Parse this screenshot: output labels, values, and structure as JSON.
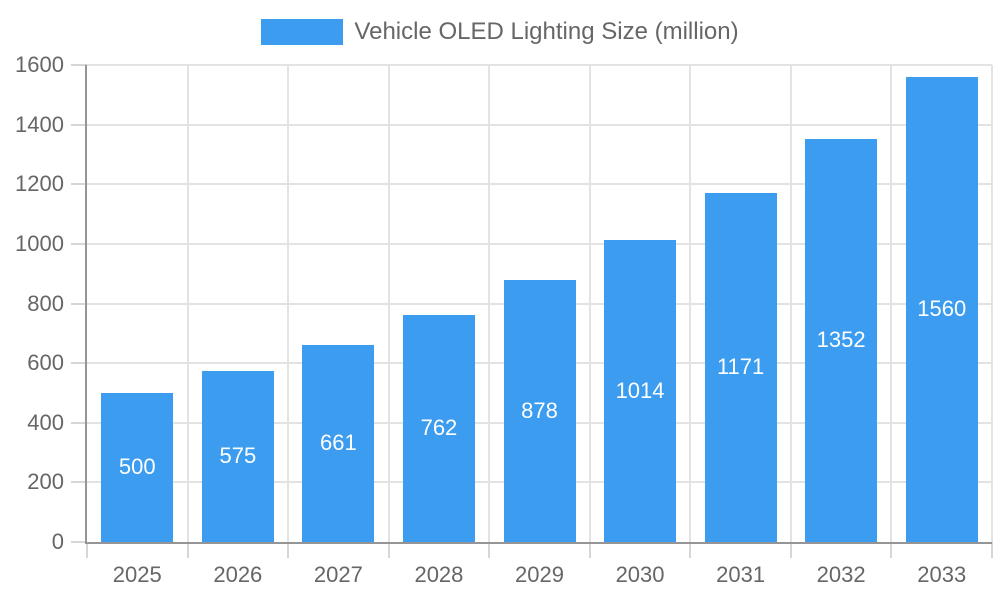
{
  "legend": {
    "label": "Vehicle OLED Lighting Size (million)"
  },
  "colors": {
    "bar": "#3B9CF0",
    "axis_line": "#959595",
    "gridline": "#E3E3E3",
    "tick_mark": "#D6D6D6",
    "axis_text": "#666666",
    "value_label_text": "#FFFFFF",
    "background": "#FFFFFF"
  },
  "chart_data": {
    "type": "bar",
    "title": "",
    "categories": [
      "2025",
      "2026",
      "2027",
      "2028",
      "2029",
      "2030",
      "2031",
      "2032",
      "2033"
    ],
    "series": [
      {
        "name": "Vehicle OLED Lighting Size (million)",
        "values": [
          500,
          575,
          661,
          762,
          878,
          1014,
          1171,
          1352,
          1560
        ]
      }
    ],
    "value_labels": [
      500,
      575,
      661,
      762,
      878,
      1014,
      1171,
      1352,
      1560
    ],
    "value_label_position": "inside-center",
    "xlabel": "",
    "ylabel": "",
    "ylim": [
      0,
      1600
    ],
    "ytick_step": 200,
    "ytick_labels": [
      "0",
      "200",
      "400",
      "600",
      "800",
      "1000",
      "1200",
      "1400",
      "1600"
    ],
    "grid": true,
    "legend_position": "top-center"
  }
}
